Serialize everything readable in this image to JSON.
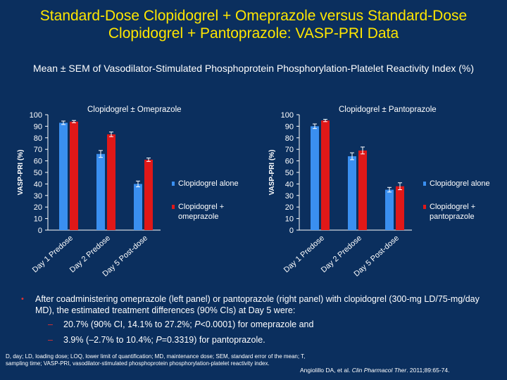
{
  "title": "Standard-Dose Clopidogrel + Omeprazole versus Standard-Dose Clopidogrel + Pantoprazole: VASP-PRI Data",
  "subtitle": "Mean ± SEM of Vasodilator-Stimulated Phosphoprotein Phosphorylation-Platelet Reactivity Index (%)",
  "colors": {
    "background": "#0b2f5e",
    "title": "#ffe600",
    "series_alone": "#3a8ff0",
    "series_combo": "#e01818",
    "bullet": "#e53030"
  },
  "chart_data": [
    {
      "type": "bar",
      "title": "Clopidogrel ± Omeprazole",
      "ylabel": "VASP-PRI (%)",
      "ylim": [
        0,
        100
      ],
      "yticks": [
        0,
        10,
        20,
        30,
        40,
        50,
        60,
        70,
        80,
        90,
        100
      ],
      "categories": [
        "Day 1 Predose",
        "Day 2 Predose",
        "Day 5 Post-dose"
      ],
      "series": [
        {
          "name": "Clopidogrel alone",
          "values": [
            93,
            66,
            40
          ],
          "errors": [
            1.5,
            3,
            2.5
          ]
        },
        {
          "name": "Clopidogrel + omeprazole",
          "values": [
            94,
            83,
            61
          ],
          "errors": [
            1,
            2,
            1.5
          ]
        }
      ],
      "legend": [
        "Clopidogrel alone",
        "Clopidogrel + omeprazole"
      ]
    },
    {
      "type": "bar",
      "title": "Clopidogrel ± Pantoprazole",
      "ylabel": "VASP-PRI (%)",
      "ylim": [
        0,
        100
      ],
      "yticks": [
        0,
        10,
        20,
        30,
        40,
        50,
        60,
        70,
        80,
        90,
        100
      ],
      "categories": [
        "Day 1 Predose",
        "Day 2 Predose",
        "Day 5 Post-dose"
      ],
      "series": [
        {
          "name": "Clopidogrel alone",
          "values": [
            90,
            64,
            35
          ],
          "errors": [
            2,
            3,
            2
          ]
        },
        {
          "name": "Clopidogrel + pantoprazole",
          "values": [
            95,
            69,
            38
          ],
          "errors": [
            1,
            3,
            3
          ]
        }
      ],
      "legend": [
        "Clopidogrel alone",
        "Clopidogrel + pantoprazole"
      ]
    }
  ],
  "bullet": {
    "text": "After coadministering omeprazole (left panel) or pantoprazole (right panel) with clopidogrel (300-mg LD/75-mg/day MD), the estimated treatment differences (90% CIs) at Day 5 were:",
    "sub1": "20.7% (90% CI, 14.1% to 27.2%; P<0.0001) for omeprazole and",
    "sub2": "3.9% (–2.7% to 10.4%; P=0.3319) for pantoprazole."
  },
  "footnote": "D, day; LD, loading dose; LOQ, lower limit of quantification; MD, maintenance dose; SEM, standard error of the mean; T, sampling time; VASP-PRI, vasodilator-stimulated phosphoprotein phosphorylation-platelet reactivity index.",
  "citation": "Angiolillo DA, et al. Clin Pharmacol Ther. 2011;89:65-74."
}
